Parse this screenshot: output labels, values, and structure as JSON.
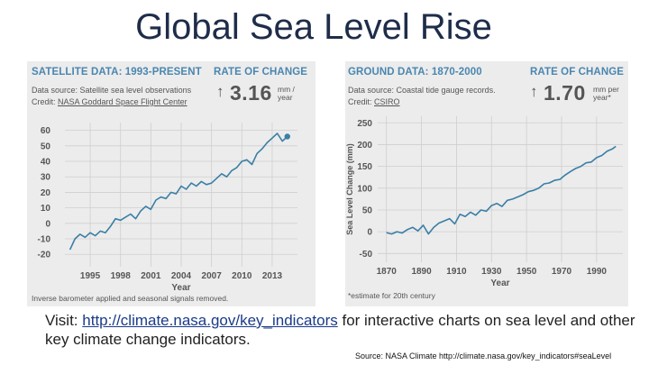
{
  "title": "Global Sea Level Rise",
  "footer": {
    "prefix": "Visit: ",
    "link": "http://climate.nasa.gov/key_indicators",
    "suffix": " for interactive charts on sea level and other key climate change indicators."
  },
  "credit": "Source: NASA Climate http://climate.nasa.gov/key_indicators#seaLevel",
  "colors": {
    "line": "#3a7fa6",
    "header": "#4a86b0",
    "panel_bg": "#ececec",
    "title": "#1f2d4a"
  },
  "chart_data": [
    {
      "type": "line",
      "title": "SATELLITE DATA: 1993-PRESENT",
      "rate_heading": "RATE OF CHANGE",
      "rate_value": "3.16",
      "rate_unit_line1": "mm /",
      "rate_unit_line2": "year",
      "source_line1": "Data source: Satellite sea level observations",
      "credit_prefix": "Credit: ",
      "credit_link": "NASA Goddard Space Flight Center",
      "note": "Inverse barometer applied and seasonal signals removed.",
      "xlabel": "Year",
      "ylabel": "",
      "x_tick_labels": [
        "1995",
        "1998",
        "2001",
        "2004",
        "2007",
        "2010",
        "2013"
      ],
      "x_ticks": [
        1995,
        1998,
        2001,
        2004,
        2007,
        2010,
        2013
      ],
      "y_ticks": [
        60,
        50,
        40,
        30,
        20,
        10,
        0,
        -10,
        -20
      ],
      "xlim": [
        1992.5,
        2015.5
      ],
      "ylim": [
        -28,
        65
      ],
      "grid": true,
      "x": [
        1993.0,
        1993.5,
        1994.0,
        1994.5,
        1995.0,
        1995.5,
        1996.0,
        1996.5,
        1997.0,
        1997.5,
        1998.0,
        1998.5,
        1999.0,
        1999.5,
        2000.0,
        2000.5,
        2001.0,
        2001.5,
        2002.0,
        2002.5,
        2003.0,
        2003.5,
        2004.0,
        2004.5,
        2005.0,
        2005.5,
        2006.0,
        2006.5,
        2007.0,
        2007.5,
        2008.0,
        2008.5,
        2009.0,
        2009.5,
        2010.0,
        2010.5,
        2011.0,
        2011.5,
        2012.0,
        2012.5,
        2013.0,
        2013.5,
        2014.0,
        2014.5
      ],
      "values": [
        -17,
        -10,
        -7,
        -9,
        -6,
        -8,
        -5,
        -6,
        -2,
        3,
        2,
        4,
        6,
        3,
        8,
        11,
        9,
        15,
        17,
        16,
        20,
        19,
        24,
        22,
        26,
        24,
        27,
        25,
        26,
        29,
        32,
        30,
        34,
        36,
        40,
        41,
        38,
        45,
        48,
        52,
        55,
        58,
        53,
        56
      ],
      "end_marker": true
    },
    {
      "type": "line",
      "title": "GROUND DATA: 1870-2000",
      "rate_heading": "RATE OF CHANGE",
      "rate_value": "1.70",
      "rate_unit_line1": "mm per",
      "rate_unit_line2": "year*",
      "source_line1": "Data source: Coastal tide gauge records.",
      "credit_prefix": "Credit: ",
      "credit_link": "CSIRO",
      "note": "*estimate for 20th century",
      "xlabel": "Year",
      "ylabel": "Sea Level Change (mm)",
      "x_tick_labels": [
        "1870",
        "1890",
        "1910",
        "1930",
        "1950",
        "1970",
        "1990"
      ],
      "x_ticks": [
        1870,
        1890,
        1910,
        1930,
        1950,
        1970,
        1990
      ],
      "y_ticks": [
        250,
        200,
        150,
        100,
        50,
        0,
        -50
      ],
      "xlim": [
        1865,
        2005
      ],
      "ylim": [
        -70,
        265
      ],
      "grid": true,
      "x": [
        1870,
        1873,
        1876,
        1879,
        1882,
        1885,
        1888,
        1891,
        1894,
        1897,
        1900,
        1903,
        1906,
        1909,
        1912,
        1915,
        1918,
        1921,
        1924,
        1927,
        1930,
        1933,
        1936,
        1939,
        1942,
        1945,
        1948,
        1951,
        1954,
        1957,
        1960,
        1963,
        1966,
        1969,
        1972,
        1975,
        1978,
        1981,
        1984,
        1987,
        1990,
        1993,
        1996,
        1999,
        2001
      ],
      "values": [
        -2,
        -5,
        0,
        -3,
        5,
        10,
        2,
        15,
        -5,
        10,
        20,
        25,
        30,
        18,
        40,
        35,
        45,
        38,
        50,
        47,
        60,
        65,
        58,
        72,
        75,
        80,
        85,
        92,
        95,
        100,
        110,
        112,
        118,
        120,
        130,
        138,
        145,
        150,
        158,
        160,
        170,
        175,
        185,
        190,
        196
      ]
    }
  ]
}
